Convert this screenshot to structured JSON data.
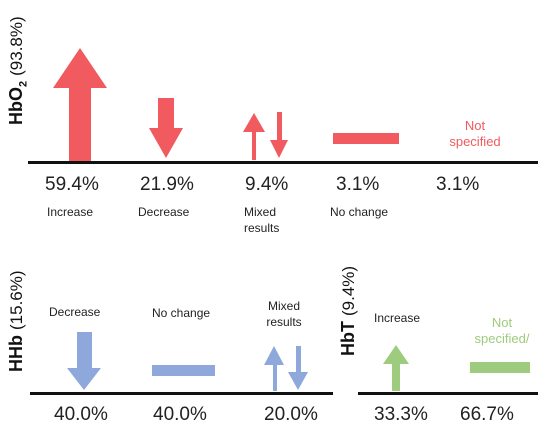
{
  "hbo2": {
    "title": "HbO",
    "subscript": "2",
    "share": "(93.8%)",
    "color": "#f15a5e",
    "items": [
      {
        "pct": "59.4%",
        "label": "Increase"
      },
      {
        "pct": "21.9%",
        "label": "Decrease"
      },
      {
        "pct": "9.4%",
        "label_line1": "Mixed",
        "label_line2": "results"
      },
      {
        "pct": "3.1%",
        "label": "No change"
      },
      {
        "pct": "3.1%",
        "inline_line1": "Not",
        "inline_line2": "specified"
      }
    ]
  },
  "hhb": {
    "title": "HHb",
    "share": "(15.6%)",
    "color": "#8fa8db",
    "items": [
      {
        "pct": "40.0%",
        "label": "Decrease"
      },
      {
        "pct": "40.0%",
        "label": "No change"
      },
      {
        "pct": "20.0%",
        "label_line1": "Mixed",
        "label_line2": "results"
      }
    ]
  },
  "hbt": {
    "title": "HbT",
    "share": "(9.4%)",
    "color": "#9dcc7e",
    "items": [
      {
        "pct": "33.3%",
        "label": "Increase"
      },
      {
        "pct": "66.7%",
        "inline_line1": "Not",
        "inline_line2": "specified/"
      }
    ]
  }
}
